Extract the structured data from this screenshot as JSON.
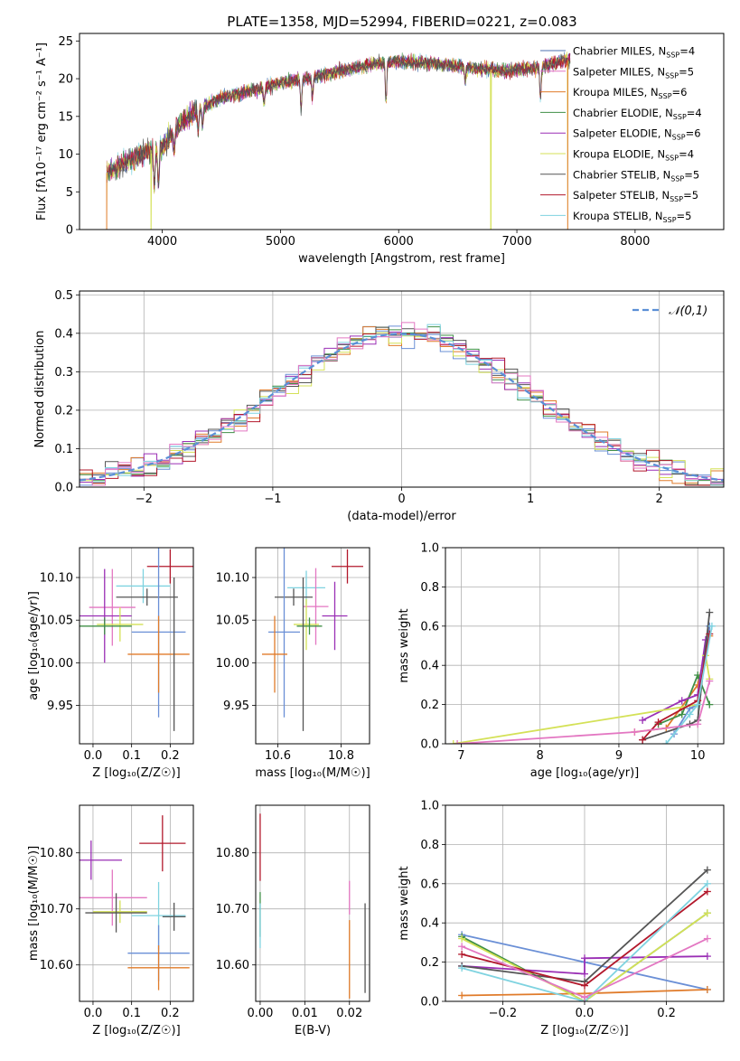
{
  "title": "PLATE=1358, MJD=52994, FIBERID=0221, z=0.083",
  "colors": [
    "#4c72b0",
    "#6a8fd6",
    "#e07b2a",
    "#3f8f46",
    "#9a2fb5",
    "#d4e157",
    "#555555",
    "#b2182b",
    "#7fd3e0"
  ],
  "chart_data": [
    {
      "type": "line",
      "name": "spectrum",
      "xlabel": "wavelength [Angstrom, rest frame]",
      "ylabel": "Flux [fλ10⁻¹⁷ erg cm⁻² s⁻¹ A⁻¹]",
      "xlim": [
        3300,
        8750
      ],
      "ylim": [
        0,
        26
      ],
      "xticks": [
        4000,
        5000,
        6000,
        7000,
        8000
      ],
      "yticks": [
        0,
        5,
        10,
        15,
        20,
        25
      ],
      "legend_position": "top-right",
      "series": [
        {
          "name": "Chabrier MILES, N_SSP=4",
          "label": "Chabrier MILES, N",
          "sub": "SSP",
          "tail": "=4",
          "color": "#4c72b0"
        },
        {
          "name": "Salpeter MILES, N_SSP=5",
          "label": "Salpeter MILES, N",
          "sub": "SSP",
          "tail": "=5",
          "color": "#e377c2"
        },
        {
          "name": "Kroupa MILES, N_SSP=6",
          "label": "Kroupa MILES, N",
          "sub": "SSP",
          "tail": "=6",
          "color": "#e07b2a"
        },
        {
          "name": "Chabrier ELODIE, N_SSP=4",
          "label": "Chabrier ELODIE, N",
          "sub": "SSP",
          "tail": "=4",
          "color": "#3f8f46"
        },
        {
          "name": "Salpeter ELODIE, N_SSP=6",
          "label": "Salpeter ELODIE, N",
          "sub": "SSP",
          "tail": "=6",
          "color": "#9a2fb5"
        },
        {
          "name": "Kroupa ELODIE, N_SSP=4",
          "label": "Kroupa ELODIE, N",
          "sub": "SSP",
          "tail": "=4",
          "color": "#d4e157"
        },
        {
          "name": "Chabrier STELIB, N_SSP=5",
          "label": "Chabrier STELIB, N",
          "sub": "SSP",
          "tail": "=5",
          "color": "#555555"
        },
        {
          "name": "Salpeter STELIB, N_SSP=5",
          "label": "Salpeter STELIB, N",
          "sub": "SSP",
          "tail": "=5",
          "color": "#b2182b"
        },
        {
          "name": "Kroupa STELIB, N_SSP=5",
          "label": "Kroupa STELIB, N",
          "sub": "SSP",
          "tail": "=5",
          "color": "#7fd3e0"
        }
      ],
      "continuum": [
        [
          3530,
          7.5
        ],
        [
          3700,
          9
        ],
        [
          3900,
          10.5
        ],
        [
          4000,
          11
        ],
        [
          4150,
          14
        ],
        [
          4300,
          16
        ],
        [
          4500,
          17.5
        ],
        [
          4800,
          18.5
        ],
        [
          5000,
          19.5
        ],
        [
          5200,
          20
        ],
        [
          5500,
          21
        ],
        [
          5800,
          22
        ],
        [
          6000,
          22.3
        ],
        [
          6300,
          22
        ],
        [
          6600,
          21.5
        ],
        [
          6900,
          21
        ],
        [
          7200,
          21.5
        ],
        [
          7400,
          22.5
        ],
        [
          7450,
          22.5
        ]
      ],
      "features": [
        [
          3933,
          -5
        ],
        [
          3968,
          -5
        ],
        [
          4101,
          -2.5
        ],
        [
          4304,
          -3
        ],
        [
          4340,
          -2.5
        ],
        [
          4861,
          -2
        ],
        [
          5175,
          -4
        ],
        [
          5270,
          -2.5
        ],
        [
          5893,
          -5
        ],
        [
          6563,
          -2
        ],
        [
          7200,
          -4
        ]
      ],
      "spikes": [
        [
          3530,
          0
        ],
        [
          3905,
          0
        ],
        [
          6780,
          0
        ],
        [
          7430,
          0
        ]
      ]
    },
    {
      "type": "bar",
      "name": "residual-histogram",
      "xlabel": "(data-model)/error",
      "ylabel": "Normed distribution",
      "xlim": [
        -2.5,
        2.5
      ],
      "ylim": [
        0,
        0.51
      ],
      "xticks": [
        -2,
        -1,
        0,
        1,
        2
      ],
      "yticks": [
        0.0,
        0.1,
        0.2,
        0.3,
        0.4,
        0.5
      ],
      "bin_width": 0.1,
      "reference": {
        "name": "𝒩(0,1)",
        "color": "#5b8fd6"
      },
      "legend_position": "top-right"
    },
    {
      "type": "scatter",
      "name": "age-vs-Z",
      "xlabel": "Z [log₁₀(Z/Z☉)]",
      "ylabel": "age  [log₁₀(age/yr)]",
      "xlim": [
        -0.035,
        0.26
      ],
      "ylim": [
        9.905,
        10.135
      ],
      "xticks": [
        0.0,
        0.1,
        0.2
      ],
      "yticks": [
        9.95,
        10.0,
        10.05,
        10.1
      ],
      "points": [
        {
          "x": 0.2,
          "y": 10.113,
          "xerr": 0.06,
          "yerr": 0.02,
          "color": "#b2182b"
        },
        {
          "x": 0.05,
          "y": 10.065,
          "xerr": 0.06,
          "yerr": 0.045,
          "color": "#e377c2"
        },
        {
          "x": 0.13,
          "y": 10.09,
          "xerr": 0.07,
          "yerr": 0.02,
          "color": "#7fd3e0"
        },
        {
          "x": 0.14,
          "y": 10.077,
          "xerr": 0.08,
          "yerr": 0.01,
          "color": "#555555"
        },
        {
          "x": 0.03,
          "y": 10.055,
          "xerr": 0.07,
          "yerr": 0.055,
          "color": "#9a2fb5"
        },
        {
          "x": 0.07,
          "y": 10.045,
          "xerr": 0.06,
          "yerr": 0.02,
          "color": "#d4e157"
        },
        {
          "x": 0.03,
          "y": 10.043,
          "xerr": 0.07,
          "yerr": 0.01,
          "color": "#3f8f46"
        },
        {
          "x": 0.17,
          "y": 10.036,
          "xerr": 0.07,
          "yerr": 0.1,
          "color": "#6a8fd6"
        },
        {
          "x": 0.17,
          "y": 10.01,
          "xerr": 0.08,
          "yerr": 0.045,
          "color": "#e07b2a"
        },
        {
          "x": 0.21,
          "y": 10.01,
          "xerr": 0.0,
          "yerr": 0.09,
          "color": "#555555"
        }
      ]
    },
    {
      "type": "scatter",
      "name": "age-vs-mass",
      "xlabel": "mass [log₁₀(M/M☉)]",
      "ylabel": "",
      "xlim": [
        10.53,
        10.89
      ],
      "ylim": [
        9.905,
        10.135
      ],
      "xticks": [
        10.6,
        10.8
      ],
      "yticks": [
        9.95,
        10.0,
        10.05,
        10.1
      ],
      "points": [
        {
          "x": 10.82,
          "y": 10.113,
          "xerr": 0.05,
          "yerr": 0.02,
          "color": "#b2182b"
        },
        {
          "x": 10.69,
          "y": 10.088,
          "xerr": 0.06,
          "yerr": 0.02,
          "color": "#7fd3e0"
        },
        {
          "x": 10.65,
          "y": 10.077,
          "xerr": 0.06,
          "yerr": 0.01,
          "color": "#555555"
        },
        {
          "x": 10.72,
          "y": 10.066,
          "xerr": 0.04,
          "yerr": 0.045,
          "color": "#e377c2"
        },
        {
          "x": 10.78,
          "y": 10.055,
          "xerr": 0.04,
          "yerr": 0.04,
          "color": "#9a2fb5"
        },
        {
          "x": 10.69,
          "y": 10.045,
          "xerr": 0.04,
          "yerr": 0.03,
          "color": "#d4e157"
        },
        {
          "x": 10.7,
          "y": 10.043,
          "xerr": 0.04,
          "yerr": 0.01,
          "color": "#3f8f46"
        },
        {
          "x": 10.62,
          "y": 10.036,
          "xerr": 0.05,
          "yerr": 0.1,
          "color": "#6a8fd6"
        },
        {
          "x": 10.59,
          "y": 10.01,
          "xerr": 0.04,
          "yerr": 0.045,
          "color": "#e07b2a"
        },
        {
          "x": 10.68,
          "y": 10.01,
          "xerr": 0.0,
          "yerr": 0.09,
          "color": "#555555"
        }
      ]
    },
    {
      "type": "line",
      "name": "mass-weight-vs-age",
      "xlabel": "age  [log₁₀(age/yr)]",
      "ylabel": "mass weight",
      "xlim": [
        6.8,
        10.33
      ],
      "ylim": [
        0,
        1.0
      ],
      "xticks": [
        7,
        8,
        9,
        10
      ],
      "yticks": [
        0.0,
        0.2,
        0.4,
        0.6,
        0.8,
        1.0
      ],
      "series": [
        {
          "color": "#6a8fd6",
          "x": [
            9.7,
            9.9,
            10.0,
            10.15
          ],
          "y": [
            0.05,
            0.18,
            0.2,
            0.6
          ]
        },
        {
          "color": "#e07b2a",
          "x": [
            9.2,
            9.6,
            10.0,
            10.15
          ],
          "y": [
            0.06,
            0.08,
            0.3,
            0.55
          ]
        },
        {
          "color": "#3f8f46",
          "x": [
            9.5,
            9.8,
            10.0,
            10.15
          ],
          "y": [
            0.1,
            0.15,
            0.35,
            0.2
          ]
        },
        {
          "color": "#9a2fb5",
          "x": [
            9.3,
            9.8,
            10.0,
            10.1
          ],
          "y": [
            0.12,
            0.22,
            0.25,
            0.53
          ]
        },
        {
          "color": "#d4e157",
          "x": [
            6.9,
            10.0,
            10.1,
            10.15
          ],
          "y": [
            0.0,
            0.2,
            0.45,
            0.33
          ]
        },
        {
          "color": "#555555",
          "x": [
            9.3,
            9.9,
            10.0,
            10.15
          ],
          "y": [
            0.02,
            0.1,
            0.12,
            0.67
          ]
        },
        {
          "color": "#b2182b",
          "x": [
            9.3,
            9.5,
            10.0,
            10.15
          ],
          "y": [
            0.02,
            0.11,
            0.22,
            0.56
          ]
        },
        {
          "color": "#7fd3e0",
          "x": [
            9.6,
            9.9,
            10.0,
            10.18
          ],
          "y": [
            0.0,
            0.15,
            0.2,
            0.6
          ]
        },
        {
          "color": "#e377c2",
          "x": [
            6.95,
            9.2,
            10.0,
            10.15
          ],
          "y": [
            0.0,
            0.06,
            0.1,
            0.32
          ]
        }
      ]
    },
    {
      "type": "scatter",
      "name": "mass-vs-Z",
      "xlabel": "Z [log₁₀(Z/Z☉)]",
      "ylabel": "mass [log₁₀(M/M☉)]",
      "xlim": [
        -0.035,
        0.26
      ],
      "ylim": [
        10.535,
        10.885
      ],
      "xticks": [
        0.0,
        0.1,
        0.2
      ],
      "yticks": [
        10.6,
        10.7,
        10.8
      ],
      "points": [
        {
          "x": 0.18,
          "y": 10.817,
          "xerr": 0.06,
          "yerr": 0.05,
          "color": "#b2182b"
        },
        {
          "x": -0.005,
          "y": 10.787,
          "xerr": 0.08,
          "yerr": 0.035,
          "color": "#9a2fb5"
        },
        {
          "x": 0.05,
          "y": 10.72,
          "xerr": 0.09,
          "yerr": 0.05,
          "color": "#e377c2"
        },
        {
          "x": 0.07,
          "y": 10.695,
          "xerr": 0.07,
          "yerr": 0.02,
          "color": "#d4e157"
        },
        {
          "x": 0.06,
          "y": 10.693,
          "xerr": 0.08,
          "yerr": 0.035,
          "color": "#555555"
        },
        {
          "x": 0.17,
          "y": 10.688,
          "xerr": 0.07,
          "yerr": 0.06,
          "color": "#7fd3e0"
        },
        {
          "x": 0.21,
          "y": 10.686,
          "xerr": 0.03,
          "yerr": 0.025,
          "color": "#555555"
        },
        {
          "x": 0.17,
          "y": 10.621,
          "xerr": 0.08,
          "yerr": 0.05,
          "color": "#6a8fd6"
        },
        {
          "x": 0.17,
          "y": 10.595,
          "xerr": 0.08,
          "yerr": 0.04,
          "color": "#e07b2a"
        }
      ]
    },
    {
      "type": "scatter",
      "name": "mass-vs-ebv",
      "xlabel": "E(B-V)",
      "ylabel": "",
      "xlim": [
        -0.001,
        0.0245
      ],
      "ylim": [
        10.535,
        10.885
      ],
      "xticks": [
        0.0,
        0.01,
        0.02
      ],
      "yticks": [
        10.6,
        10.7,
        10.8
      ],
      "points": [
        {
          "x": 0.0,
          "y": 10.81,
          "xerr": 0.0,
          "yerr": 0.06,
          "color": "#b2182b"
        },
        {
          "x": 0.0,
          "y": 10.69,
          "xerr": 0.0,
          "yerr": 0.04,
          "color": "#3f8f46"
        },
        {
          "x": 0.0,
          "y": 10.67,
          "xerr": 0.0,
          "yerr": 0.04,
          "color": "#7fd3e0"
        },
        {
          "x": 0.02,
          "y": 10.72,
          "xerr": 0.0,
          "yerr": 0.03,
          "color": "#e377c2"
        },
        {
          "x": 0.02,
          "y": 10.61,
          "xerr": 0.0,
          "yerr": 0.07,
          "color": "#e07b2a"
        },
        {
          "x": 0.0235,
          "y": 10.63,
          "xerr": 0.0,
          "yerr": 0.08,
          "color": "#555555"
        }
      ]
    },
    {
      "type": "line",
      "name": "mass-weight-vs-Z",
      "xlabel": "Z [log₁₀(Z/Z☉)]",
      "ylabel": "mass weight",
      "xlim": [
        -0.34,
        0.34
      ],
      "ylim": [
        0,
        1.0
      ],
      "xticks": [
        -0.2,
        0.0,
        0.2
      ],
      "yticks": [
        0.0,
        0.2,
        0.4,
        0.6,
        0.8,
        1.0
      ],
      "series": [
        {
          "color": "#6a8fd6",
          "x": [
            -0.3,
            0.0,
            0.3
          ],
          "y": [
            0.34,
            0.2,
            0.06
          ]
        },
        {
          "color": "#e07b2a",
          "x": [
            -0.3,
            0.0,
            0.3
          ],
          "y": [
            0.03,
            0.04,
            0.06
          ]
        },
        {
          "color": "#3f8f46",
          "x": [
            -0.3,
            0.0,
            0.3
          ],
          "y": [
            0.33,
            0.0,
            0.45
          ]
        },
        {
          "color": "#9a2fb5",
          "x": [
            -0.3,
            0.0,
            0.0,
            0.3
          ],
          "y": [
            0.18,
            0.14,
            0.22,
            0.23
          ]
        },
        {
          "color": "#d4e157",
          "x": [
            -0.3,
            0.0,
            0.3
          ],
          "y": [
            0.32,
            0.0,
            0.45
          ]
        },
        {
          "color": "#555555",
          "x": [
            -0.3,
            0.0,
            0.3
          ],
          "y": [
            0.18,
            0.1,
            0.67
          ]
        },
        {
          "color": "#b2182b",
          "x": [
            -0.3,
            0.0,
            0.3
          ],
          "y": [
            0.24,
            0.08,
            0.56
          ]
        },
        {
          "color": "#7fd3e0",
          "x": [
            -0.3,
            0.0,
            0.3
          ],
          "y": [
            0.17,
            0.0,
            0.6
          ]
        },
        {
          "color": "#e377c2",
          "x": [
            -0.3,
            0.0,
            0.3
          ],
          "y": [
            0.28,
            0.02,
            0.32
          ]
        }
      ]
    }
  ]
}
